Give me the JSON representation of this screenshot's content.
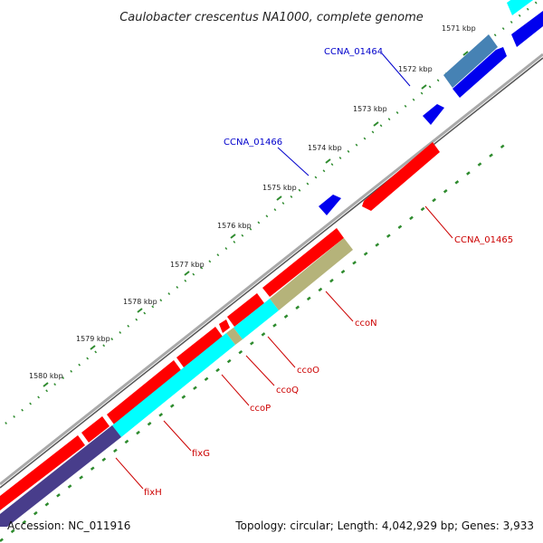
{
  "title": "Caulobacter crescentus NA1000, complete genome",
  "footer": {
    "accession": "Accession: NC_011916",
    "stats": "Topology: circular; Length: 4,042,929 bp; Genes: 3,933"
  },
  "ticks": [
    "1571 kbp",
    "1572 kbp",
    "1573 kbp",
    "1574 kbp",
    "1575 kbp",
    "1576 kbp",
    "1577 kbp",
    "1578 kbp",
    "1579 kbp",
    "1580 kbp"
  ],
  "gene_labels": {
    "ccna_01464": "CCNA_01464",
    "ccna_01466": "CCNA_01466",
    "ccna_01465": "CCNA_01465",
    "ccoN": "ccoN",
    "ccoO": "ccoO",
    "ccoQ": "ccoQ",
    "ccoP": "ccoP",
    "fixG": "fixG",
    "fixH": "fixH"
  },
  "colors": {
    "cds_forward": "#ff0000",
    "cds_reverse": "#0000ee",
    "label_forward": "#cc0000",
    "label_reverse": "#0000cc",
    "cog_cyan": "#00ffff",
    "cog_olive": "#b5b37a",
    "cog_steel": "#4682b4",
    "cog_navy": "#483d8b",
    "backbone": "#8a8a8a",
    "tick": "#2e8b2e"
  }
}
